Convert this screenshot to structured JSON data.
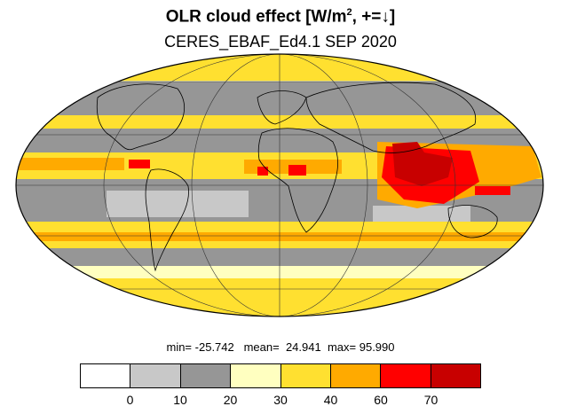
{
  "title": {
    "main": "OLR cloud effect [W/m",
    "superscript": "2",
    "suffix": ", +=↓]"
  },
  "subtitle": "CERES_EBAF_Ed4.1 SEP 2020",
  "stats": {
    "min_label": "min=",
    "min": "-25.742",
    "mean_label": "mean=",
    "mean": "24.941",
    "max_label": "max=",
    "max": "95.990"
  },
  "colorbar": {
    "colors": [
      "#ffffff",
      "#c8c8c8",
      "#969696",
      "#ffffc0",
      "#ffe030",
      "#ffaa00",
      "#ff0000",
      "#c80000"
    ],
    "tick_labels": [
      "0",
      "10",
      "20",
      "30",
      "40",
      "60",
      "70"
    ]
  },
  "map": {
    "projection": "mollweide",
    "grid": true,
    "ocean_grey": "#969696",
    "land_light": "#c8c8c8",
    "band_yellow": "#ffe030",
    "band_orange": "#ffaa00",
    "band_red": "#ff0000"
  }
}
